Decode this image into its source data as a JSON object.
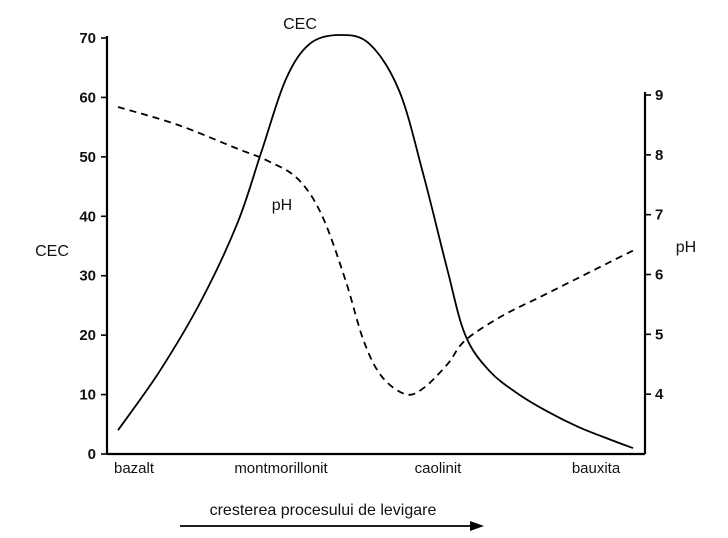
{
  "chart_data": {
    "type": "line",
    "categories": [
      "bazalt",
      "montmorillonit",
      "caolinit",
      "bauxita"
    ],
    "left_axis": {
      "label": "CEC",
      "ylim": [
        0,
        70
      ],
      "ticks": [
        0,
        10,
        20,
        30,
        40,
        50,
        60,
        70
      ]
    },
    "right_axis": {
      "label": "pH",
      "ylim": [
        3,
        9
      ],
      "ticks": [
        4,
        5,
        6,
        7,
        8,
        9
      ]
    },
    "series": [
      {
        "name": "CEC",
        "axis": "left",
        "style": "solid",
        "points": [
          [
            0.0,
            4
          ],
          [
            0.35,
            14
          ],
          [
            0.7,
            26
          ],
          [
            1.0,
            39
          ],
          [
            1.2,
            51
          ],
          [
            1.4,
            63
          ],
          [
            1.6,
            69
          ],
          [
            1.85,
            70.5
          ],
          [
            2.1,
            69
          ],
          [
            2.35,
            61
          ],
          [
            2.55,
            47
          ],
          [
            2.75,
            31
          ],
          [
            2.9,
            20
          ],
          [
            3.1,
            14
          ],
          [
            3.35,
            10
          ],
          [
            3.6,
            7
          ],
          [
            3.85,
            4.5
          ],
          [
            4.1,
            2.5
          ],
          [
            4.3,
            1
          ]
        ]
      },
      {
        "name": "pH",
        "axis": "right",
        "style": "dashed",
        "points": [
          [
            0.0,
            8.8
          ],
          [
            0.5,
            8.5
          ],
          [
            1.0,
            8.1
          ],
          [
            1.25,
            7.9
          ],
          [
            1.5,
            7.6
          ],
          [
            1.7,
            7.0
          ],
          [
            1.9,
            5.9
          ],
          [
            2.05,
            4.9
          ],
          [
            2.2,
            4.3
          ],
          [
            2.4,
            4.0
          ],
          [
            2.55,
            4.1
          ],
          [
            2.75,
            4.5
          ],
          [
            2.9,
            4.9
          ],
          [
            3.2,
            5.3
          ],
          [
            3.5,
            5.6
          ],
          [
            3.8,
            5.9
          ],
          [
            4.1,
            6.2
          ],
          [
            4.3,
            6.4
          ]
        ]
      }
    ],
    "annotations": [
      {
        "text": "CEC",
        "series": "CEC"
      },
      {
        "text": "pH",
        "series": "pH"
      }
    ],
    "arrow_label": "cresterea procesului de levigare",
    "grid": false
  }
}
